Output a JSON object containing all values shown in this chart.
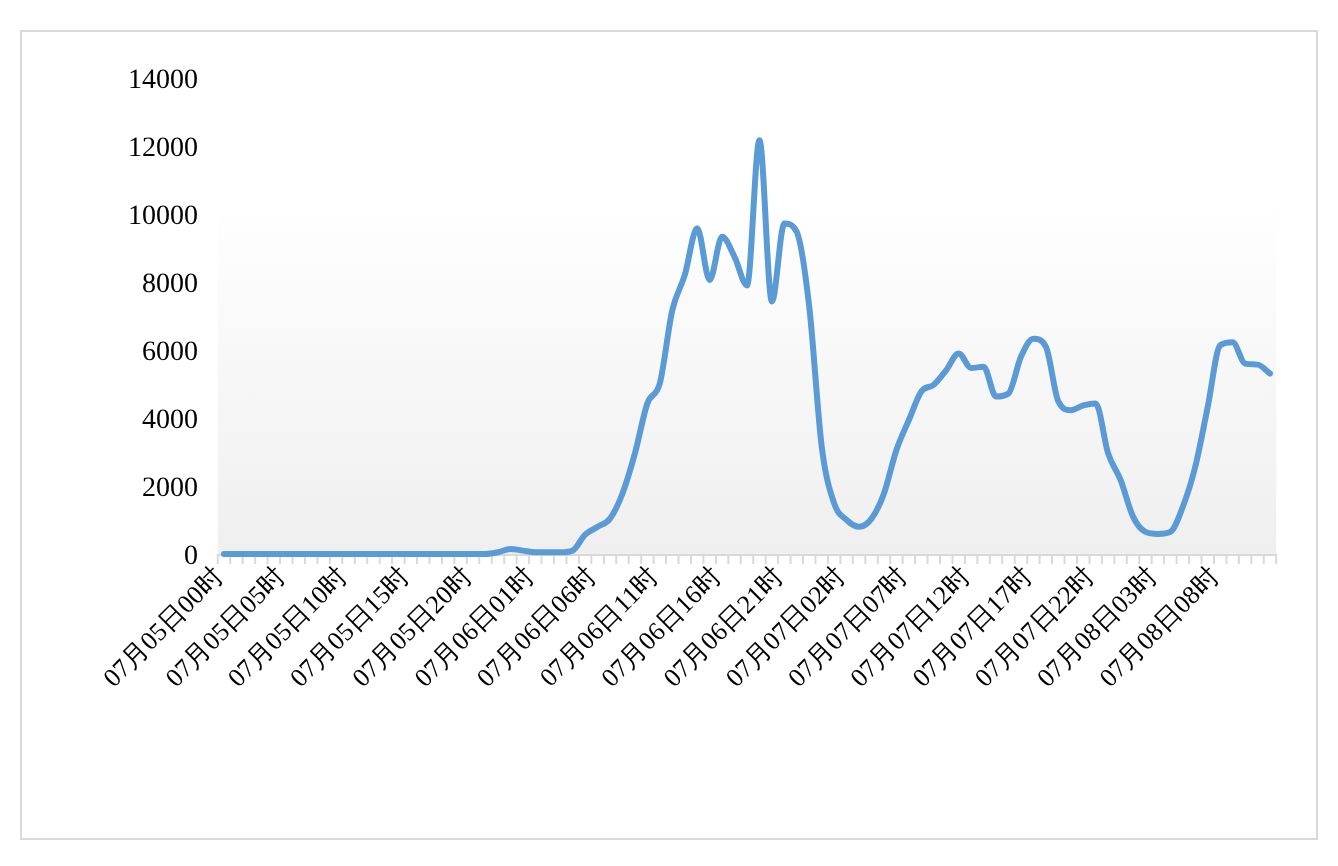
{
  "chart_data": {
    "type": "line",
    "categories": [
      "07月05日00时",
      null,
      null,
      null,
      null,
      "07月05日05时",
      null,
      null,
      null,
      null,
      "07月05日10时",
      null,
      null,
      null,
      null,
      "07月05日15时",
      null,
      null,
      null,
      null,
      "07月05日20时",
      null,
      null,
      null,
      null,
      "07月06日01时",
      null,
      null,
      null,
      null,
      "07月06日06时",
      null,
      null,
      null,
      null,
      "07月06日11时",
      null,
      null,
      null,
      null,
      "07月06日16时",
      null,
      null,
      null,
      null,
      "07月06日21时",
      null,
      null,
      null,
      null,
      "07月07日02时",
      null,
      null,
      null,
      null,
      "07月07日07时",
      null,
      null,
      null,
      null,
      "07月07日12时",
      null,
      null,
      null,
      null,
      "07月07日17时",
      null,
      null,
      null,
      null,
      "07月07日22时",
      null,
      null,
      null,
      null,
      "07月08日03时",
      null,
      null,
      null,
      null,
      "07月08日08时",
      null,
      null,
      null,
      null
    ],
    "series": [
      {
        "color": "#5b9bd5",
        "values": [
          0,
          0,
          0,
          0,
          0,
          0,
          0,
          0,
          0,
          0,
          0,
          0,
          0,
          0,
          0,
          0,
          0,
          0,
          0,
          0,
          0,
          0,
          50,
          150,
          100,
          50,
          50,
          50,
          100,
          570,
          800,
          1040,
          1780,
          2960,
          4430,
          5020,
          7170,
          8200,
          9580,
          8060,
          9330,
          8740,
          7900,
          12170,
          7430,
          9720,
          9470,
          7270,
          3160,
          1490,
          1000,
          800,
          1040,
          1780,
          3060,
          3940,
          4780,
          4980,
          5410,
          5900,
          5470,
          5510,
          4630,
          4720,
          5800,
          6330,
          6100,
          4490,
          4230,
          4370,
          4430,
          2960,
          2180,
          1100,
          650,
          590,
          650,
          1390,
          2570,
          4330,
          6140,
          6230,
          5600,
          5570,
          5310
        ]
      }
    ],
    "ylim": [
      0,
      14000
    ],
    "yticks": [
      0,
      2000,
      4000,
      6000,
      8000,
      10000,
      12000,
      14000
    ],
    "grid": false,
    "marker": "none",
    "line_style": "solid"
  }
}
